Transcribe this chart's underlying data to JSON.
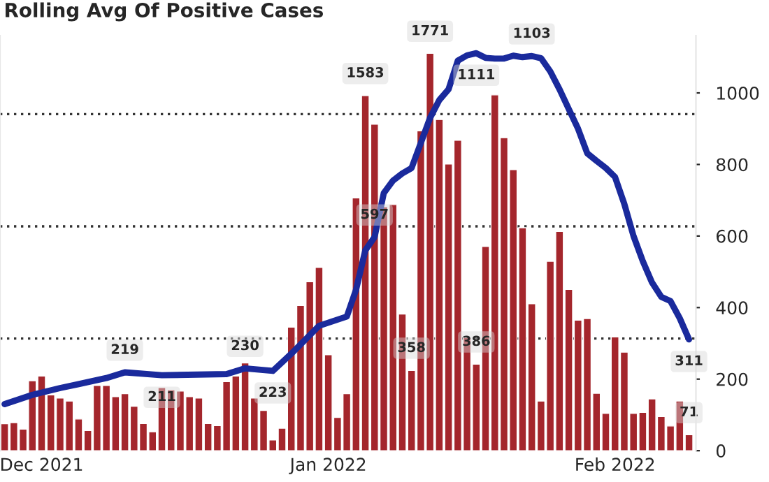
{
  "chart_data": {
    "type": "bar",
    "title": "Rolling Avg Of Positive Cases",
    "x": [
      "2021-11-27",
      "2021-11-28",
      "2021-11-29",
      "2021-11-30",
      "2021-12-01",
      "2021-12-02",
      "2021-12-03",
      "2021-12-04",
      "2021-12-05",
      "2021-12-06",
      "2021-12-07",
      "2021-12-08",
      "2021-12-09",
      "2021-12-10",
      "2021-12-11",
      "2021-12-12",
      "2021-12-13",
      "2021-12-14",
      "2021-12-15",
      "2021-12-16",
      "2021-12-17",
      "2021-12-18",
      "2021-12-19",
      "2021-12-20",
      "2021-12-21",
      "2021-12-22",
      "2021-12-23",
      "2021-12-24",
      "2021-12-25",
      "2021-12-26",
      "2021-12-27",
      "2021-12-28",
      "2021-12-29",
      "2021-12-30",
      "2021-12-31",
      "2022-01-01",
      "2022-01-02",
      "2022-01-03",
      "2022-01-04",
      "2022-01-05",
      "2022-01-06",
      "2022-01-07",
      "2022-01-08",
      "2022-01-09",
      "2022-01-10",
      "2022-01-11",
      "2022-01-12",
      "2022-01-13",
      "2022-01-14",
      "2022-01-15",
      "2022-01-16",
      "2022-01-17",
      "2022-01-18",
      "2022-01-19",
      "2022-01-20",
      "2022-01-21",
      "2022-01-22",
      "2022-01-23",
      "2022-01-24",
      "2022-01-25",
      "2022-01-26",
      "2022-01-27",
      "2022-01-28",
      "2022-01-29",
      "2022-01-30",
      "2022-01-31",
      "2022-02-01",
      "2022-02-02",
      "2022-02-03",
      "2022-02-04",
      "2022-02-05",
      "2022-02-06",
      "2022-02-07",
      "2022-02-08",
      "2022-02-09"
    ],
    "series": [
      {
        "color": "#a4262c",
        "values": [
          120,
          125,
          96,
          312,
          333,
          249,
          235,
          221,
          141,
          90,
          291,
          291,
          241,
          254,
          198,
          121,
          84,
          281,
          271,
          266,
          241,
          235,
          121,
          112,
          308,
          333,
          391,
          235,
          179,
          48,
          100,
          551,
          647,
          753,
          817,
          428,
          148,
          254,
          1127,
          1583,
          1455,
          1087,
          1097,
          609,
          358,
          1426,
          1771,
          1476,
          1278,
          1384,
          505,
          386,
          910,
          1586,
          1395,
          1253,
          994,
          655,
          221,
          844,
          977,
          719,
          582,
          589,
          256,
          166,
          507,
          439,
          166,
          171,
          231,
          152,
          110,
          221,
          71
        ],
        "value_labels": [
          null,
          null,
          null,
          null,
          null,
          null,
          null,
          null,
          null,
          null,
          null,
          null,
          null,
          null,
          null,
          null,
          null,
          null,
          null,
          null,
          null,
          null,
          null,
          null,
          null,
          null,
          null,
          null,
          null,
          null,
          null,
          null,
          null,
          null,
          null,
          null,
          null,
          null,
          null,
          "1583",
          null,
          null,
          null,
          null,
          "358",
          null,
          "1771",
          null,
          null,
          null,
          null,
          "386",
          null,
          null,
          null,
          null,
          null,
          null,
          null,
          null,
          null,
          null,
          null,
          null,
          null,
          null,
          null,
          null,
          null,
          null,
          null,
          null,
          null,
          null,
          "71"
        ]
      },
      {
        "type": "line",
        "axis": "y2",
        "color": "#1a2a9c",
        "x": [
          "2021-11-27",
          "2021-11-30",
          "2021-12-03",
          "2021-12-05",
          "2021-12-08",
          "2021-12-10",
          "2021-12-14",
          "2021-12-21",
          "2021-12-23",
          "2021-12-26",
          "2021-12-28",
          "2021-12-31",
          "2022-01-03",
          "2022-01-04",
          "2022-01-05",
          "2022-01-06",
          "2022-01-07",
          "2022-01-08",
          "2022-01-09",
          "2022-01-10",
          "2022-01-11",
          "2022-01-12",
          "2022-01-13",
          "2022-01-14",
          "2022-01-15",
          "2022-01-16",
          "2022-01-17",
          "2022-01-18",
          "2022-01-19",
          "2022-01-20",
          "2022-01-21",
          "2022-01-22",
          "2022-01-23",
          "2022-01-24",
          "2022-01-25",
          "2022-01-26",
          "2022-01-27",
          "2022-01-28",
          "2022-01-29",
          "2022-01-30",
          "2022-01-31",
          "2022-02-01",
          "2022-02-02",
          "2022-02-03",
          "2022-02-04",
          "2022-02-05",
          "2022-02-06",
          "2022-02-07",
          "2022-02-08",
          "2022-02-09"
        ],
        "values": [
          130,
          156,
          175,
          186,
          203,
          219,
          211,
          214,
          230,
          223,
          271,
          349,
          375,
          450,
          560,
          597,
          720,
          755,
          775,
          790,
          860,
          930,
          980,
          1010,
          1090,
          1105,
          1111,
          1098,
          1096,
          1096,
          1104,
          1100,
          1103,
          1097,
          1060,
          1010,
          955,
          900,
          831,
          810,
          790,
          765,
          690,
          600,
          530,
          470,
          430,
          418,
          370,
          311
        ],
        "value_labels": [
          null,
          null,
          null,
          null,
          null,
          "219",
          "211",
          null,
          "230",
          "223",
          null,
          null,
          null,
          null,
          null,
          "597",
          null,
          null,
          null,
          null,
          null,
          null,
          null,
          null,
          null,
          null,
          "1111",
          null,
          null,
          null,
          null,
          null,
          "1103",
          null,
          null,
          null,
          null,
          null,
          null,
          null,
          null,
          null,
          null,
          null,
          null,
          null,
          null,
          null,
          null,
          "311"
        ]
      }
    ],
    "xlim": [
      "2021-11-26T12:00",
      "2022-02-09T18:00"
    ],
    "xticks": [
      {
        "value": "2021-12-01",
        "label": "Dec 2021"
      },
      {
        "value": "2022-01-01",
        "label": "Jan 2022"
      },
      {
        "value": "2022-02-01",
        "label": "Feb 2022"
      }
    ],
    "ylim": [
      0,
      1850
    ],
    "yticks": [
      {
        "value": 500,
        "label": null
      },
      {
        "value": 1000,
        "label": null
      },
      {
        "value": 1500,
        "label": null
      }
    ],
    "y2lim": [
      0,
      1160
    ],
    "y2ticks": [
      0,
      200,
      400,
      600,
      800,
      1000
    ],
    "grid": "y",
    "legend": false
  }
}
